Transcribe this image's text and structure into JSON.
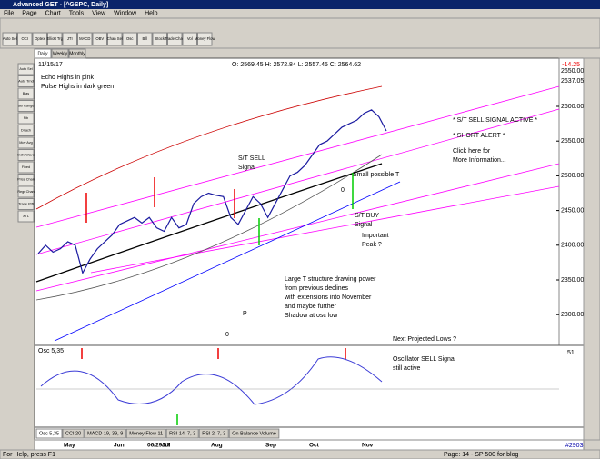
{
  "window_title": "Advanced GET - [^GSPC, Daily]",
  "menu": [
    "File",
    "Page",
    "Chart",
    "Tools",
    "View",
    "Window",
    "Help"
  ],
  "toolbar": [
    "Auto Sel",
    "OCI",
    "Optex",
    "Elliott Trg",
    "JTI",
    "MACD",
    "OBV",
    "Chan Sel",
    "Osc",
    "Bill",
    "Stock",
    "Trade Chart",
    "Vol",
    "Money Flow"
  ],
  "timeframe_tabs": [
    "Daily",
    "Weekly",
    "Monthly"
  ],
  "left_tools": [
    "Auto Sel",
    "Auto Trnd",
    "Bias",
    "Sel Range",
    "Fib",
    "Dnach",
    "Mov Avg",
    "Indiv Wave",
    "Fixed",
    "Price Chan",
    "Regr Chan",
    "Trade Prfl",
    "XTL"
  ],
  "chart": {
    "date": "11/15/17",
    "ohlc": "O: 2569.45   H: 2572.84   L: 2557.45   C: 2564.62",
    "change": "-14.25",
    "top_labels": [
      "2650.00",
      "2637.05"
    ],
    "price_ticks": [
      "2600.00",
      "2550.00",
      "2500.00",
      "2450.00",
      "2400.00",
      "2350.00",
      "2300.00"
    ],
    "months": [
      "May",
      "Jun",
      "06/29/17",
      "Jul",
      "Aug",
      "Sep",
      "Oct",
      "Nov"
    ],
    "closes": [
      2388,
      2400,
      2390,
      2395,
      2405,
      2400,
      2360,
      2380,
      2395,
      2405,
      2415,
      2430,
      2435,
      2440,
      2432,
      2440,
      2425,
      2420,
      2440,
      2425,
      2430,
      2460,
      2470,
      2475,
      2472,
      2470,
      2440,
      2430,
      2450,
      2470,
      2460,
      2440,
      2460,
      2480,
      2500,
      2505,
      2515,
      2530,
      2545,
      2550,
      2560,
      2570,
      2575,
      2580,
      2590,
      2595,
      2585,
      2564.62
    ],
    "annotations": [
      [
        "Echo Highs in pink",
        "Pulse Highs in dark green"
      ],
      [
        "S/T SELL",
        "Signal"
      ],
      [
        "Small possible T"
      ],
      [
        "0"
      ],
      [
        "S/T BUY",
        "Signal"
      ],
      [
        "Important",
        "Peak ?"
      ],
      [
        "P"
      ],
      [
        "0"
      ],
      [
        "Large T structure drawing power",
        "from previous declines",
        "with extensions into November",
        "and maybe further",
        "Shadow at osc low"
      ],
      [
        "Next Projected Lows ?"
      ],
      [
        "* S/T SELL SIGNAL ACTIVE *"
      ],
      [
        "* SHORT ALERT *"
      ],
      [
        "Click here for",
        "More Information..."
      ]
    ]
  },
  "osc": {
    "label": "Osc 5,35",
    "value": "51",
    "annotation": [
      "Oscillator SELL Signal",
      "still active"
    ]
  },
  "indicator_tabs": [
    "Osc 5,35",
    "CCI 20",
    "MACD 19, 39, 9",
    "Money Flow 11",
    "RSI 14, 7, 3",
    "RSI 2, 7, 3",
    "On Balance Volume"
  ],
  "status": {
    "help": "For Help, press F1",
    "page": "Page: 14 - SP 500 for blog",
    "id": "#2903"
  }
}
